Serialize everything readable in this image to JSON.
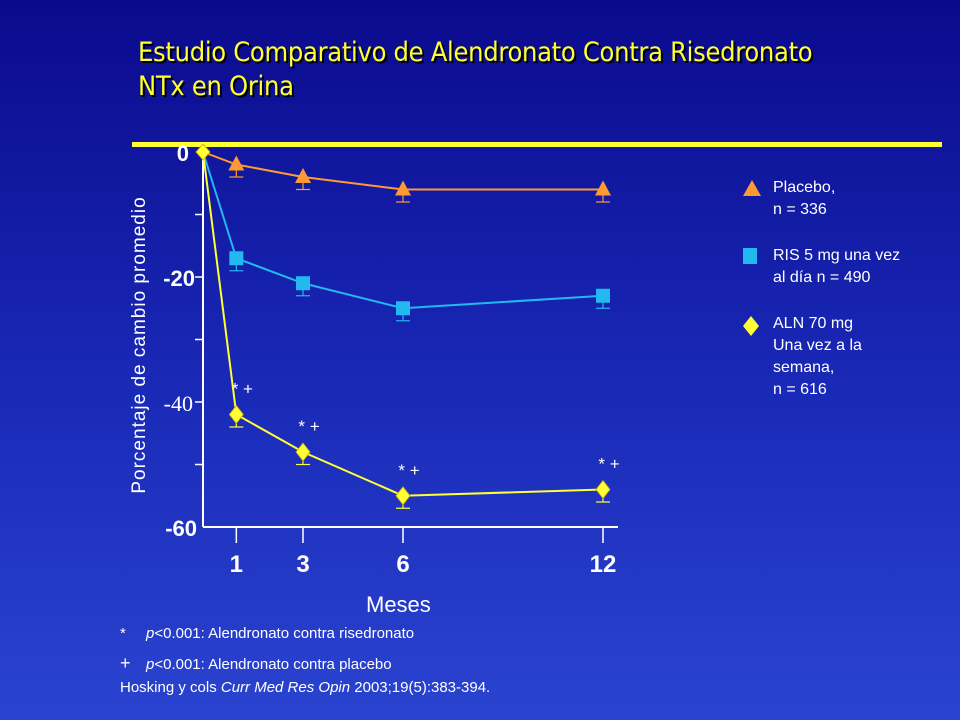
{
  "title": {
    "line1": "Estudio Comparativo de Alendronato Contra  Risedronato",
    "line2": "NTx en Orina"
  },
  "chart_data": {
    "type": "line",
    "ylabel": "Porcentaje de cambio promedio",
    "xlabel": "Meses",
    "ylim": [
      -60,
      0
    ],
    "yticks": [
      0,
      -20,
      -40,
      -60
    ],
    "ytick_labels": [
      "0",
      "-20",
      "-40",
      "-60"
    ],
    "xticks": [
      1,
      3,
      6,
      12
    ],
    "xtick_labels": [
      "1",
      "3",
      "6",
      "12"
    ],
    "x": [
      0,
      1,
      3,
      6,
      12
    ],
    "series": [
      {
        "name": "Placebo, n = 336",
        "marker": "triangle",
        "color": "#ff9933",
        "values": [
          0,
          -2,
          -4,
          -6,
          -6
        ],
        "error_low": [
          null,
          -4,
          -6,
          -8,
          -8
        ]
      },
      {
        "name": "RIS 5 mg una vez al día n = 490",
        "marker": "square",
        "color": "#22b8f0",
        "values": [
          0,
          -17,
          -21,
          -25,
          -23
        ],
        "error_low": [
          null,
          -19,
          -23,
          -27,
          -25
        ]
      },
      {
        "name": "ALN 70 mg Una vez a la semana, n = 616",
        "marker": "diamond",
        "color": "#ffff33",
        "values": [
          0,
          -42,
          -48,
          -55,
          -54
        ],
        "error_low": [
          null,
          -44,
          -50,
          -57,
          -56
        ]
      }
    ],
    "annotations": [
      {
        "x": 1,
        "text": "* +"
      },
      {
        "x": 3,
        "text": "* +"
      },
      {
        "x": 6,
        "text": "* +"
      },
      {
        "x": 12,
        "text": "* +"
      }
    ],
    "legend_placement": "right"
  },
  "legend": [
    {
      "marker": "triangle",
      "color": "#ff9933",
      "lines": [
        "Placebo,",
        "n = 336"
      ]
    },
    {
      "marker": "square",
      "color": "#22b8f0",
      "lines": [
        "RIS 5 mg una vez",
        "al día n = 490"
      ]
    },
    {
      "marker": "diamond",
      "color": "#ffff33",
      "lines": [
        "ALN 70 mg",
        "Una vez a la",
        "semana,",
        "n = 616"
      ]
    }
  ],
  "footnotes": {
    "star_mark": "*",
    "star_p": "p",
    "star_text": "<0.001:  Alendronato contra risedronato",
    "plus_mark": "+",
    "plus_p": "p",
    "plus_text": "<0.001:  Alendronato contra placebo",
    "ref_pre": "Hosking y cols ",
    "ref_journal": "Curr Med Res Opin",
    "ref_post": " 2003;19(5):383-394."
  }
}
